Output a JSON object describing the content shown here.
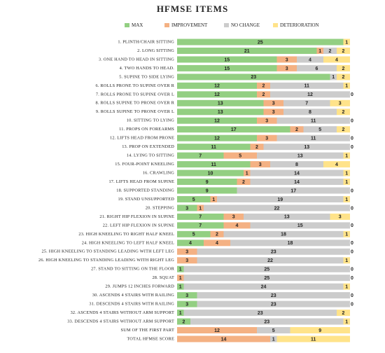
{
  "chart_data": {
    "type": "stacked-bar-horizontal",
    "title": "HFMSE ITEMS",
    "legend": "top",
    "categories": [
      "1. PLINTH/CHAIR SITTING",
      "2. LONG SITTING",
      "3. ONE HAND TO HEAD IN SITTING",
      "4. TWO HANDS TO HEAD.",
      "5. SUPINE TO SIDE LYING",
      "6. ROLLS PRONE TO SUPINE OVER R",
      "7. ROLLS PRONE TO SUPINE OVER L",
      "8. ROLLS SUPINE TO PRONE OVER R",
      "9. ROLLS SUPINE TO PRONE OVER L",
      "10. SITTING TO LYING",
      "11. PROPS ON FOREARMS",
      "12. LIFTS HEAD FROM PRONE",
      "13. PROP ON EXTENDED",
      "14. LYING TO SITTING",
      "15. FOUR-POINT KNEELING",
      "16. CRAWLING",
      "17. LIFTS HEAD FROM SUPINE",
      "18. SUPPORTED STANDING",
      "19. STAND UNSUPPORTED",
      "20. STEPPING",
      "21. RIGHT HIP FLEXION IN SUPINE",
      "22. LEFT HIP FLEXION IN SUPINE",
      "23. HIGH KNEELING TO RIGHT HALF KNEEL",
      "24. HIGH KNEELING TO LEFT HALF KNEEL",
      "25. HIGH KNEELING TO STANDING LEADING WITH LEFT LEG",
      "26. HIGH KNEELING TO STANDING LEADING WITH RIGHT LEG",
      "27. STAND TO SITTING ON THE FLOOR",
      "28. SQUAT",
      "29. JUMPS 12 INCHES FORWARD",
      "30. ASCENDS 4 STAIRS WITH RAILING",
      "31. DESCENDS 4 STAIRS WITH RAILING",
      "32. ASCENDS 4 STAIRS WITHOUT ARM SUPPORT",
      "33. DESCENDS 4 STAIRS WITHOUT ARM SUPPORT",
      "SUM OF THE FIRST PART",
      "TOTAL HFMSE SCORE"
    ],
    "series": [
      {
        "name": "MAX",
        "color": "#93cf82",
        "values": [
          25,
          21,
          15,
          15,
          23,
          12,
          12,
          13,
          13,
          12,
          17,
          12,
          11,
          7,
          11,
          10,
          9,
          9,
          5,
          3,
          7,
          7,
          5,
          4,
          0,
          0,
          1,
          0,
          1,
          3,
          3,
          1,
          2,
          0,
          0
        ]
      },
      {
        "name": "IMPROVEMENT",
        "color": "#f4b183",
        "values": [
          0,
          1,
          3,
          3,
          0,
          2,
          2,
          3,
          3,
          3,
          2,
          3,
          2,
          5,
          3,
          1,
          2,
          0,
          1,
          1,
          3,
          4,
          2,
          4,
          3,
          3,
          0,
          1,
          0,
          0,
          0,
          0,
          0,
          12,
          14
        ]
      },
      {
        "name": "NO CHANGE",
        "color": "#cccccc",
        "values": [
          0,
          2,
          4,
          6,
          1,
          11,
          12,
          7,
          8,
          11,
          5,
          11,
          13,
          13,
          8,
          14,
          14,
          17,
          19,
          22,
          13,
          15,
          18,
          18,
          23,
          22,
          25,
          25,
          24,
          23,
          23,
          23,
          23,
          5,
          1
        ]
      },
      {
        "name": "DETERIORATION",
        "color": "#ffe38a",
        "values": [
          1,
          2,
          4,
          2,
          2,
          1,
          0,
          3,
          2,
          0,
          2,
          0,
          0,
          1,
          4,
          1,
          1,
          0,
          1,
          0,
          3,
          0,
          1,
          0,
          0,
          1,
          0,
          0,
          1,
          0,
          0,
          2,
          1,
          9,
          11
        ]
      }
    ]
  }
}
